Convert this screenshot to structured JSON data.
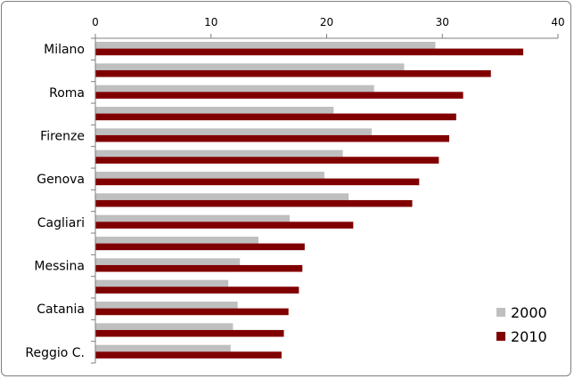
{
  "chart_data": {
    "type": "bar",
    "orientation": "horizontal",
    "categories": [
      "Milano",
      "",
      "Roma",
      "",
      "Firenze",
      "",
      "Genova",
      "",
      "Cagliari",
      "",
      "Messina",
      "",
      "Catania",
      "",
      "Reggio C."
    ],
    "series": [
      {
        "name": "2000",
        "color": "#bfbfbf",
        "values": [
          29.4,
          26.7,
          24.1,
          20.6,
          23.9,
          21.4,
          19.8,
          21.9,
          16.8,
          14.1,
          12.5,
          11.5,
          12.3,
          11.9,
          11.7
        ]
      },
      {
        "name": "2010",
        "color": "#800000",
        "values": [
          37.0,
          34.2,
          31.8,
          31.2,
          30.6,
          29.7,
          28.0,
          27.4,
          22.3,
          18.1,
          17.9,
          17.6,
          16.7,
          16.3,
          16.1
        ]
      }
    ],
    "xlim": [
      0,
      40
    ],
    "ticks": [
      0,
      10,
      20,
      30,
      40
    ],
    "tick_labels": [
      "0",
      "10",
      "20",
      "30",
      "40"
    ],
    "axis_position": "top",
    "grid": false,
    "legend_position": "bottom-right"
  }
}
